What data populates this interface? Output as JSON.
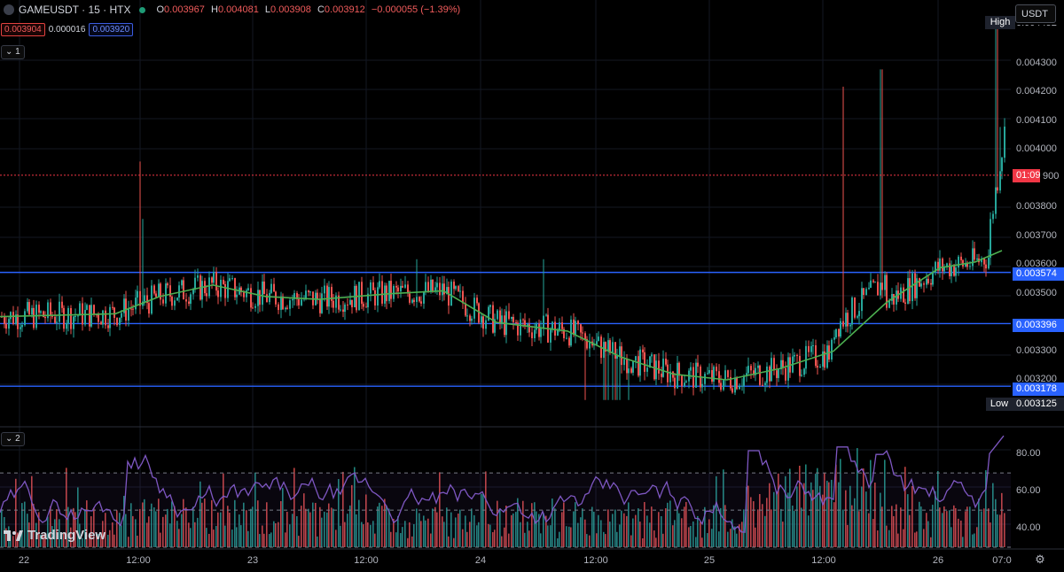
{
  "header": {
    "symbol": "GAMEUSDT · 15 · HTX",
    "o_label": "O",
    "o_value": "0.003967",
    "h_label": "H",
    "h_value": "0.004081",
    "l_label": "L",
    "l_value": "0.003908",
    "c_label": "C",
    "c_value": "0.003912",
    "change": "−0.000055 (−1.39%)",
    "sell_price": "0.003904",
    "spread": "0.000016",
    "buy_price": "0.003920",
    "pane1_toggle": "1",
    "pane2_toggle": "2"
  },
  "currency_selector": "USDT",
  "price_axis": {
    "ticks": [
      "0.004300",
      "0.004200",
      "0.004100",
      "0.004000",
      "0.003800",
      "0.003700",
      "0.003600",
      "0.003500",
      "0.003300",
      "0.003200"
    ],
    "high_label": "High",
    "high_value": "0.004452",
    "low_label": "Low",
    "low_value": "0.003125",
    "countdown": "01:09",
    "last_price_partial": "900",
    "level_1": "0.003574",
    "level_2": "0.003396",
    "level_3": "0.003178"
  },
  "rsi_axis": {
    "ticks": [
      "80.00",
      "60.00",
      "40.00"
    ]
  },
  "time_axis": {
    "labels": [
      "22",
      "12:00",
      "23",
      "12:00",
      "24",
      "12:00",
      "25",
      "12:00",
      "26",
      "07:0"
    ]
  },
  "brand": {
    "logo_text": "TradingView"
  },
  "colors": {
    "up": "#26a69a",
    "down": "#ef5350",
    "ma": "#4caf50",
    "rsi": "#7e57c2",
    "level": "#2962ff",
    "last_price": "#f23645"
  },
  "chart_data": {
    "type": "candlestick",
    "price_ylim": [
      0.00308,
      0.00446
    ],
    "horizontal_levels": [
      0.003574,
      0.003396,
      0.003178
    ],
    "moving_average_points": [
      [
        0,
        0.00342
      ],
      [
        130,
        0.00343
      ],
      [
        180,
        0.00349
      ],
      [
        240,
        0.00353
      ],
      [
        300,
        0.00349
      ],
      [
        360,
        0.00348
      ],
      [
        440,
        0.0035
      ],
      [
        500,
        0.00351
      ],
      [
        560,
        0.0034
      ],
      [
        640,
        0.00337
      ],
      [
        700,
        0.00328
      ],
      [
        760,
        0.00322
      ],
      [
        820,
        0.0032
      ],
      [
        880,
        0.00324
      ],
      [
        940,
        0.0033
      ],
      [
        1000,
        0.00347
      ],
      [
        1060,
        0.00359
      ],
      [
        1100,
        0.00361
      ],
      [
        1130,
        0.00365
      ]
    ],
    "rsi_ylim": [
      30,
      92
    ],
    "rsi_levels": [
      70,
      50,
      30
    ]
  }
}
